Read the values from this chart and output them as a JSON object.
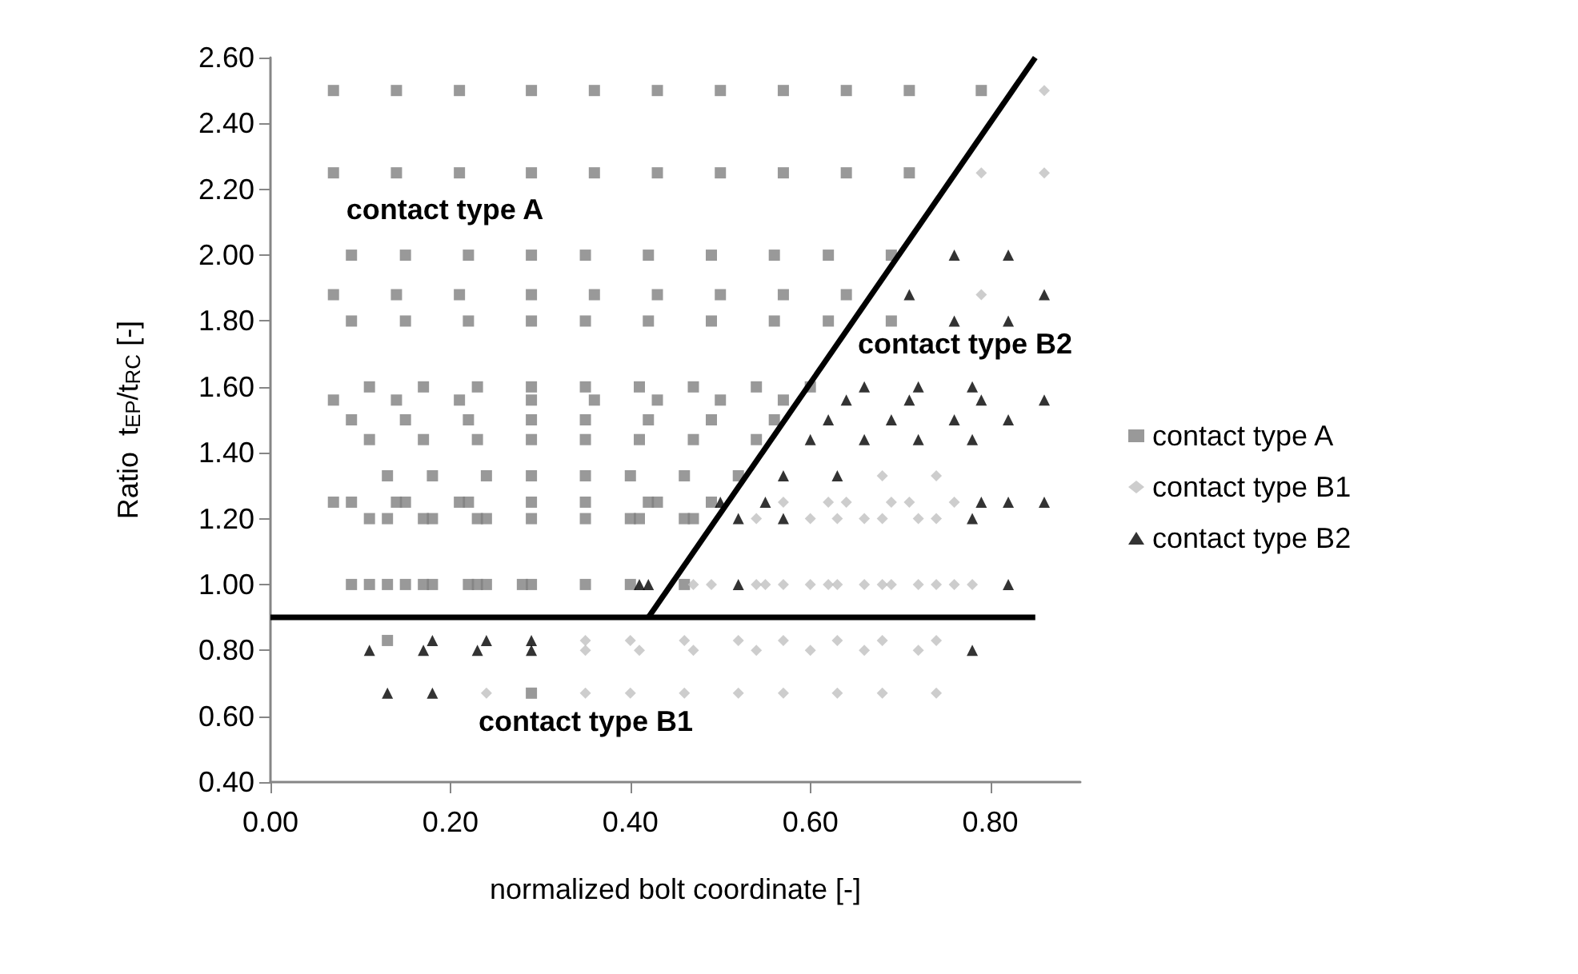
{
  "chart_data": {
    "type": "scatter",
    "xlabel": "normalized bolt coordinate [-]",
    "ylabel": "Ratio  t$_{EP}$/t$_{RC}$ [-]",
    "xlim": [
      0,
      0.9
    ],
    "xticks": [
      {
        "value": 0,
        "label": "0.00"
      },
      {
        "value": 0.2,
        "label": "0.20"
      },
      {
        "value": 0.4,
        "label": "0.40"
      },
      {
        "value": 0.6,
        "label": "0.60"
      },
      {
        "value": 0.8,
        "label": "0.80"
      }
    ],
    "ylim": [
      0.4,
      2.6
    ],
    "yticks": [
      {
        "value": 0.4,
        "label": "0.40"
      },
      {
        "value": 0.6,
        "label": "0.60"
      },
      {
        "value": 0.8,
        "label": "0.80"
      },
      {
        "value": 1.0,
        "label": "1.00"
      },
      {
        "value": 1.2,
        "label": "1.20"
      },
      {
        "value": 1.4,
        "label": "1.40"
      },
      {
        "value": 1.6,
        "label": "1.60"
      },
      {
        "value": 1.8,
        "label": "1.80"
      },
      {
        "value": 2.0,
        "label": "2.00"
      },
      {
        "value": 2.2,
        "label": "2.20"
      },
      {
        "value": 2.4,
        "label": "2.40"
      },
      {
        "value": 2.6,
        "label": "2.60"
      }
    ],
    "grid": false,
    "legend": "right",
    "annotations": [
      "contact type A",
      "contact type B2",
      "contact type B1"
    ],
    "series": [
      {
        "name": "contact type A",
        "color": "#808080",
        "marker": "square",
        "x": [
          0.07,
          0.14,
          0.21,
          0.29,
          0.36,
          0.43,
          0.5,
          0.57,
          0.64,
          0.71,
          0.79,
          0.07,
          0.14,
          0.21,
          0.29,
          0.36,
          0.43,
          0.5,
          0.57,
          0.64,
          0.71,
          0.09,
          0.15,
          0.22,
          0.29,
          0.35,
          0.42,
          0.49,
          0.56,
          0.62,
          0.69,
          0.07,
          0.14,
          0.21,
          0.29,
          0.36,
          0.43,
          0.5,
          0.57,
          0.64,
          0.09,
          0.15,
          0.22,
          0.29,
          0.35,
          0.42,
          0.49,
          0.56,
          0.62,
          0.69,
          0.11,
          0.17,
          0.23,
          0.29,
          0.35,
          0.41,
          0.47,
          0.54,
          0.6,
          0.07,
          0.14,
          0.21,
          0.29,
          0.36,
          0.43,
          0.5,
          0.57,
          0.09,
          0.15,
          0.22,
          0.29,
          0.35,
          0.42,
          0.49,
          0.56,
          0.11,
          0.17,
          0.23,
          0.29,
          0.35,
          0.41,
          0.47,
          0.54,
          0.13,
          0.18,
          0.24,
          0.29,
          0.35,
          0.4,
          0.46,
          0.52,
          0.07,
          0.09,
          0.14,
          0.15,
          0.21,
          0.22,
          0.29,
          0.35,
          0.42,
          0.43,
          0.49,
          0.11,
          0.13,
          0.17,
          0.18,
          0.23,
          0.24,
          0.29,
          0.35,
          0.4,
          0.41,
          0.46,
          0.47,
          0.09,
          0.11,
          0.13,
          0.15,
          0.17,
          0.18,
          0.22,
          0.23,
          0.24,
          0.28,
          0.29,
          0.35,
          0.4,
          0.46,
          0.13,
          0.29
        ],
        "values": [
          2.5,
          2.5,
          2.5,
          2.5,
          2.5,
          2.5,
          2.5,
          2.5,
          2.5,
          2.5,
          2.5,
          2.25,
          2.25,
          2.25,
          2.25,
          2.25,
          2.25,
          2.25,
          2.25,
          2.25,
          2.25,
          2,
          2,
          2,
          2,
          2,
          2,
          2,
          2,
          2,
          2,
          1.88,
          1.88,
          1.88,
          1.88,
          1.88,
          1.88,
          1.88,
          1.88,
          1.88,
          1.8,
          1.8,
          1.8,
          1.8,
          1.8,
          1.8,
          1.8,
          1.8,
          1.8,
          1.8,
          1.6,
          1.6,
          1.6,
          1.6,
          1.6,
          1.6,
          1.6,
          1.6,
          1.6,
          1.56,
          1.56,
          1.56,
          1.56,
          1.56,
          1.56,
          1.56,
          1.56,
          1.5,
          1.5,
          1.5,
          1.5,
          1.5,
          1.5,
          1.5,
          1.5,
          1.44,
          1.44,
          1.44,
          1.44,
          1.44,
          1.44,
          1.44,
          1.44,
          1.33,
          1.33,
          1.33,
          1.33,
          1.33,
          1.33,
          1.33,
          1.33,
          1.25,
          1.25,
          1.25,
          1.25,
          1.25,
          1.25,
          1.25,
          1.25,
          1.25,
          1.25,
          1.25,
          1.2,
          1.2,
          1.2,
          1.2,
          1.2,
          1.2,
          1.2,
          1.2,
          1.2,
          1.2,
          1.2,
          1.2,
          1,
          1,
          1,
          1,
          1,
          1,
          1,
          1,
          1,
          1,
          1,
          1,
          1,
          1,
          0.83,
          0.67
        ]
      },
      {
        "name": "contact type B1",
        "color": "#c0c0c0",
        "marker": "diamond",
        "x": [
          0.86,
          0.79,
          0.86,
          0.79,
          0.68,
          0.74,
          0.57,
          0.62,
          0.64,
          0.69,
          0.71,
          0.76,
          0.54,
          0.6,
          0.63,
          0.66,
          0.68,
          0.72,
          0.74,
          0.47,
          0.49,
          0.54,
          0.55,
          0.57,
          0.6,
          0.62,
          0.63,
          0.66,
          0.68,
          0.69,
          0.72,
          0.74,
          0.76,
          0.78,
          0.35,
          0.4,
          0.46,
          0.52,
          0.57,
          0.63,
          0.68,
          0.74,
          0.35,
          0.41,
          0.47,
          0.54,
          0.6,
          0.66,
          0.72,
          0.24,
          0.35,
          0.4,
          0.46,
          0.52,
          0.57,
          0.63,
          0.68,
          0.74
        ],
        "values": [
          2.5,
          2.25,
          2.25,
          1.88,
          1.33,
          1.33,
          1.25,
          1.25,
          1.25,
          1.25,
          1.25,
          1.25,
          1.2,
          1.2,
          1.2,
          1.2,
          1.2,
          1.2,
          1.2,
          1,
          1,
          1,
          1,
          1,
          1,
          1,
          1,
          1,
          1,
          1,
          1,
          1,
          1,
          1,
          0.83,
          0.83,
          0.83,
          0.83,
          0.83,
          0.83,
          0.83,
          0.83,
          0.8,
          0.8,
          0.8,
          0.8,
          0.8,
          0.8,
          0.8,
          0.67,
          0.67,
          0.67,
          0.67,
          0.67,
          0.67,
          0.67,
          0.67,
          0.67
        ]
      },
      {
        "name": "contact type B2",
        "color": "#000000",
        "marker": "triangle",
        "x": [
          0.76,
          0.82,
          0.71,
          0.86,
          0.76,
          0.82,
          0.66,
          0.72,
          0.78,
          0.64,
          0.71,
          0.79,
          0.86,
          0.62,
          0.69,
          0.76,
          0.82,
          0.6,
          0.66,
          0.72,
          0.78,
          0.57,
          0.63,
          0.5,
          0.55,
          0.79,
          0.82,
          0.86,
          0.52,
          0.57,
          0.78,
          0.41,
          0.42,
          0.52,
          0.82,
          0.18,
          0.24,
          0.29,
          0.11,
          0.17,
          0.23,
          0.29,
          0.78,
          0.13,
          0.18
        ],
        "values": [
          2,
          2,
          1.88,
          1.88,
          1.8,
          1.8,
          1.6,
          1.6,
          1.6,
          1.56,
          1.56,
          1.56,
          1.56,
          1.5,
          1.5,
          1.5,
          1.5,
          1.44,
          1.44,
          1.44,
          1.44,
          1.33,
          1.33,
          1.25,
          1.25,
          1.25,
          1.25,
          1.25,
          1.2,
          1.2,
          1.2,
          1,
          1,
          1,
          1,
          0.83,
          0.83,
          0.83,
          0.8,
          0.8,
          0.8,
          0.8,
          0.8,
          0.67,
          0.67
        ]
      },
      {
        "type": "line",
        "color": "#000000",
        "marker": "none",
        "x": [
          0,
          0.85
        ],
        "values": [
          0.9,
          0.9
        ]
      },
      {
        "type": "line",
        "color": "#000000",
        "marker": "none",
        "x": [
          0.42,
          0.85
        ],
        "values": [
          0.9,
          2.6
        ]
      }
    ]
  }
}
